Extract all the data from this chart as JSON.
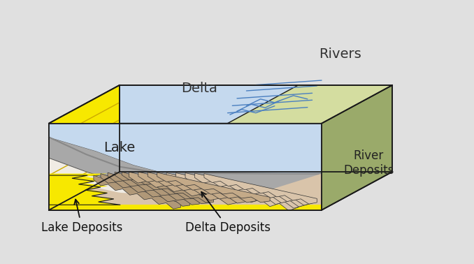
{
  "background": "#e0e0e0",
  "colors": {
    "lake_blue": "#c5d9ee",
    "lake_deposits_yellow": "#f7e800",
    "river_green_dark": "#9aaa6a",
    "river_green_light": "#d4dda0",
    "river_lines": "#4a7fc0",
    "delta_gray": "#a8a8a8",
    "tan_light": "#d9c4aa",
    "tan_mid": "#c4aa88",
    "tan_dark": "#b09878",
    "brown_dark": "#9a8060",
    "outline": "#1a1a1a",
    "white_cream": "#f0ece4",
    "left_face_yellow": "#f5e000"
  },
  "labels": {
    "lake": "Lake",
    "delta": "Delta",
    "rivers": "Rivers",
    "river_deposits": "River\nDeposits",
    "lake_deposits": "Lake Deposits",
    "delta_deposits": "Delta Deposits"
  },
  "fontsize": 12
}
